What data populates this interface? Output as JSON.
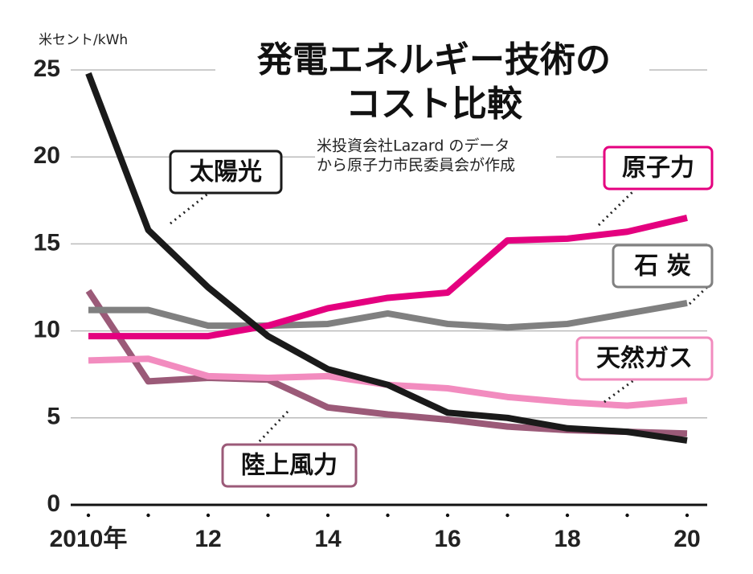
{
  "chart_data": {
    "type": "line",
    "title": [
      "発電エネルギー技術の",
      "コスト比較"
    ],
    "subtitle": [
      "米投資会社Lazard のデータ",
      "から原子力市民委員会が作成"
    ],
    "y_label": "米セント/kWh",
    "x": [
      2010,
      2011,
      2012,
      2013,
      2014,
      2015,
      2016,
      2017,
      2018,
      2019,
      2020
    ],
    "xlim": [
      2010,
      2020
    ],
    "xticks": [
      {
        "value": 2010,
        "label": "2010年"
      },
      {
        "value": 2012,
        "label": "12"
      },
      {
        "value": 2014,
        "label": "14"
      },
      {
        "value": 2016,
        "label": "16"
      },
      {
        "value": 2018,
        "label": "18"
      },
      {
        "value": 2020,
        "label": "20"
      }
    ],
    "ylim": [
      0,
      25
    ],
    "yticks": [
      0,
      5,
      10,
      15,
      20,
      25
    ],
    "grid": true,
    "series": [
      {
        "name": "陸上風力",
        "color": "#9b5a78",
        "values": [
          12.3,
          7.1,
          7.3,
          7.2,
          5.6,
          5.2,
          4.9,
          4.5,
          4.3,
          4.2,
          4.1
        ]
      },
      {
        "name": "天然ガス",
        "color": "#f28cbf",
        "values": [
          8.3,
          8.4,
          7.4,
          7.3,
          7.4,
          6.9,
          6.7,
          6.2,
          5.9,
          5.7,
          6.0
        ]
      },
      {
        "name": "石 炭",
        "color": "#808080",
        "values": [
          11.2,
          11.2,
          10.3,
          10.3,
          10.4,
          11.0,
          10.4,
          10.2,
          10.4,
          11.0,
          11.6
        ]
      },
      {
        "name": "原子力",
        "color": "#e4007f",
        "values": [
          9.7,
          9.7,
          9.7,
          10.3,
          11.3,
          11.9,
          12.2,
          15.2,
          15.3,
          15.7,
          16.5
        ]
      },
      {
        "name": "太陽光",
        "color": "#1a1a1a",
        "values": [
          24.8,
          15.8,
          12.5,
          9.7,
          7.8,
          6.9,
          5.3,
          5.0,
          4.4,
          4.2,
          3.7
        ]
      }
    ]
  }
}
